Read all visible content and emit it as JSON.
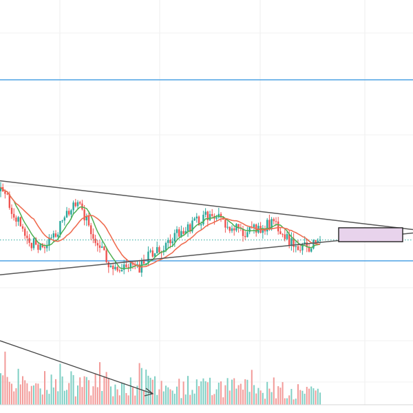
{
  "chart_data": {
    "type": "candlestick",
    "title": "",
    "xlabel": "",
    "ylabel": "",
    "grid": true,
    "colors": {
      "up": "#26a69a",
      "down": "#ef5350",
      "ma_fast": "#4caf50",
      "ma_slow": "#ef6c50",
      "level_line": "#5aa9e6",
      "trend_line": "#555555",
      "volume_up": "#7fcfc4",
      "volume_down": "#f29a98",
      "zone_fill": "#e8d3ec",
      "last_price": "#26a69a"
    },
    "price_range": [
      94.5,
      103.2
    ],
    "horizontal_levels": [
      101.5,
      96.3
    ],
    "last_price": 96.9,
    "triangle": {
      "upper": [
        [
          0,
          98.6
        ],
        [
          600,
          97.2
        ]
      ],
      "lower": [
        [
          0,
          95.9
        ],
        [
          600,
          97.1
        ]
      ]
    },
    "target_zone": {
      "x": [
        492,
        585
      ],
      "y": [
        97.25,
        96.85
      ]
    },
    "volume_trend_arrow": [
      [
        0,
        0.7
      ],
      [
        222,
        0.1
      ]
    ],
    "candles_seed": 42
  }
}
